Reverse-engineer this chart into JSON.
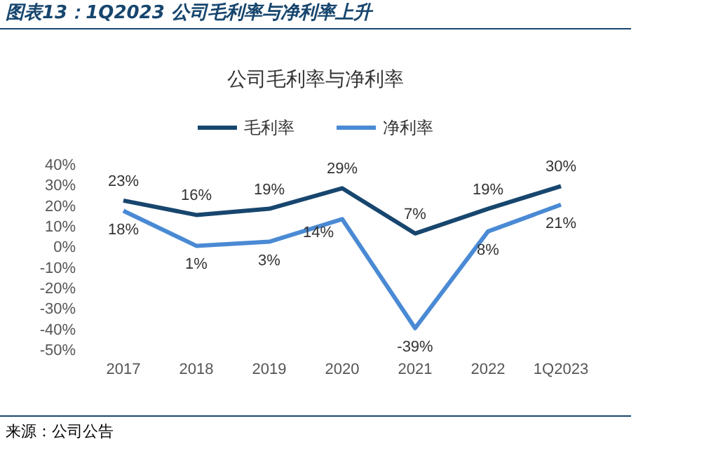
{
  "chart_data": {
    "type": "line",
    "title": "公司毛利率与净利率",
    "subtitle": "图表13：1Q2023 公司毛利率与净利率上升",
    "categories": [
      "2017",
      "2018",
      "2019",
      "2020",
      "2021",
      "2022",
      "1Q2023"
    ],
    "series": [
      {
        "name": "毛利率",
        "color": "#17466e",
        "values": [
          23,
          16,
          19,
          29,
          7,
          19,
          30
        ],
        "value_labels": [
          "23%",
          "16%",
          "19%",
          "29%",
          "7%",
          "19%",
          "30%"
        ]
      },
      {
        "name": "净利率",
        "color": "#4a8ad4",
        "values": [
          18,
          1,
          3,
          14,
          -39,
          8,
          21
        ],
        "value_labels": [
          "18%",
          "1%",
          "3%",
          "14%",
          "-39%",
          "8%",
          "21%"
        ]
      }
    ],
    "ylim": [
      -50,
      40
    ],
    "yticks": [
      {
        "value": 40,
        "label": "40%"
      },
      {
        "value": 30,
        "label": "30%"
      },
      {
        "value": 20,
        "label": "20%"
      },
      {
        "value": 10,
        "label": "10%"
      },
      {
        "value": 0,
        "label": "0%"
      },
      {
        "value": -10,
        "label": "-10%"
      },
      {
        "value": -20,
        "label": "-20%"
      },
      {
        "value": -30,
        "label": "-30%"
      },
      {
        "value": -40,
        "label": "-40%"
      },
      {
        "value": -50,
        "label": "-50%"
      }
    ],
    "legend": "top",
    "marker": "none",
    "line_style": "solid",
    "annotations": [
      "来源：公司公告"
    ]
  }
}
